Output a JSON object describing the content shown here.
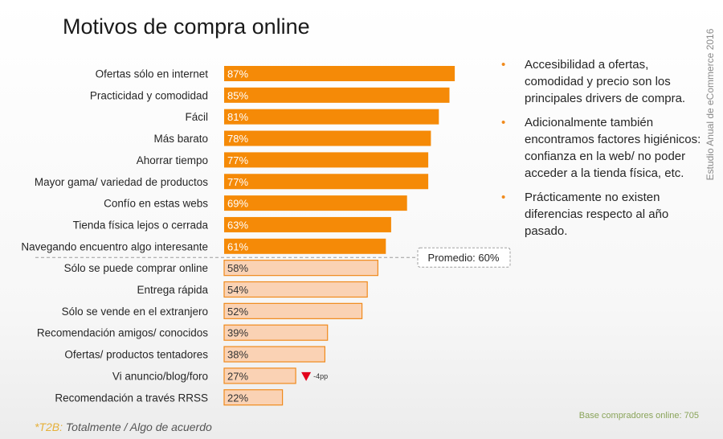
{
  "title": "Motivos de compra online",
  "side_label": "Estudio Anual de eCommerce 2016",
  "bullets": [
    "Accesibilidad a ofertas, comodidad y precio son los principales drivers de compra.",
    "Adicionalmente también encontramos factores higiénicos: confianza en la web/ no poder acceder a la tienda física, etc.",
    "Prácticamente no existen diferencias respecto al año pasado."
  ],
  "bullet_marker": "•",
  "base_label": "Base compradores online: 705",
  "footnote": {
    "code": "*T2B:",
    "text": "Totalmente / Algo de acuerdo"
  },
  "chart_data": {
    "type": "bar",
    "orientation": "horizontal",
    "categories": [
      "Ofertas sólo en internet",
      "Practicidad y comodidad",
      "Fácil",
      "Más barato",
      "Ahorrar tiempo",
      "Mayor gama/ variedad de productos",
      "Confío en estas webs",
      "Tienda física lejos o  cerrada",
      "Navegando encuentro algo interesante",
      "Sólo se puede comprar online",
      "Entrega rápida",
      "Sólo se vende en el extranjero",
      "Recomendación amigos/ conocidos",
      "Ofertas/ productos tentadores",
      "Vi anuncio/blog/foro",
      "Recomendación a través RRSS"
    ],
    "values": [
      87,
      85,
      81,
      78,
      77,
      77,
      69,
      63,
      61,
      58,
      54,
      52,
      39,
      38,
      27,
      22
    ],
    "value_labels": [
      "87%",
      "85%",
      "81%",
      "78%",
      "77%",
      "77%",
      "69%",
      "63%",
      "61%",
      "58%",
      "54%",
      "52%",
      "39%",
      "38%",
      "27%",
      "22%"
    ],
    "average": {
      "value": 60,
      "label": "Promedio: 60%"
    },
    "annotation": {
      "category": "Vi anuncio/blog/foro",
      "label": "-4pp",
      "direction": "down",
      "color": "#e3001b"
    },
    "colors": {
      "above_average": "#f58a07",
      "below_average": "#fad2b4",
      "below_border": "#f08a1c"
    },
    "xlim": [
      0,
      100
    ]
  }
}
